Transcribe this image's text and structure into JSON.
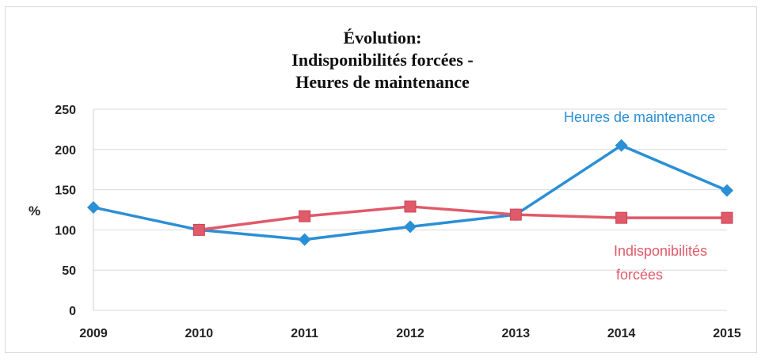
{
  "chart_data": {
    "type": "line",
    "title_lines": [
      "Évolution:",
      "Indisponibilités forcées -",
      "Heures de maintenance"
    ],
    "ylabel": "%",
    "xlabel": "",
    "x": [
      "2009",
      "2010",
      "2011",
      "2012",
      "2013",
      "2014",
      "2015"
    ],
    "yticks": [
      0,
      50,
      100,
      150,
      200,
      250
    ],
    "ylim": [
      0,
      250
    ],
    "grid": true,
    "series": [
      {
        "name": "Heures de maintenance",
        "color": "#2b8fd6",
        "marker": "diamond",
        "values": [
          128,
          100,
          88,
          104,
          119,
          205,
          149
        ]
      },
      {
        "name_lines": [
          "Indisponibilités",
          "forcées"
        ],
        "color": "#e05a6a",
        "marker": "square",
        "values": [
          null,
          100,
          117,
          129,
          119,
          115,
          115
        ]
      }
    ]
  }
}
